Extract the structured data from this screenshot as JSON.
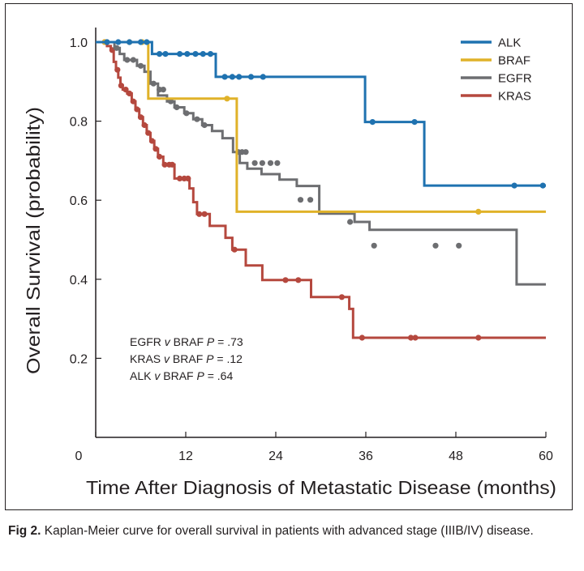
{
  "chart_data": {
    "type": "line",
    "subtype": "kaplan-meier",
    "xlabel": "Time After Diagnosis of Metastatic Disease (months)",
    "ylabel": "Overall Survival (probability)",
    "xlim": [
      0,
      60
    ],
    "ylim": [
      0,
      1.05
    ],
    "x_ticks": [
      0,
      12,
      24,
      36,
      48,
      60
    ],
    "y_ticks": [
      0.2,
      0.4,
      0.6,
      0.8,
      1.0
    ],
    "x_tick_labels": [
      "0",
      "12",
      "24",
      "36",
      "48",
      "60"
    ],
    "y_tick_labels": [
      "0.2",
      "0.4",
      "0.6",
      "0.8",
      "1.0"
    ],
    "grid": false,
    "legend_position": "top-right",
    "series": [
      {
        "name": "ALK",
        "color": "#1f72b0",
        "steps": [
          [
            0,
            1.0
          ],
          [
            7.5,
            0.97
          ],
          [
            16,
            0.912
          ],
          [
            35.9,
            0.798
          ],
          [
            43.8,
            0.637
          ],
          [
            60,
            0.637
          ]
        ],
        "censored": [
          [
            1.5,
            1.0
          ],
          [
            3,
            1.0
          ],
          [
            4.5,
            1.0
          ],
          [
            6,
            1.0
          ],
          [
            6.8,
            1.0
          ],
          [
            8.5,
            0.97
          ],
          [
            9.3,
            0.97
          ],
          [
            11.2,
            0.97
          ],
          [
            12.2,
            0.97
          ],
          [
            13.3,
            0.97
          ],
          [
            14.3,
            0.97
          ],
          [
            15.3,
            0.97
          ],
          [
            17.2,
            0.912
          ],
          [
            18.2,
            0.912
          ],
          [
            19.1,
            0.912
          ],
          [
            20.7,
            0.912
          ],
          [
            22.3,
            0.912
          ],
          [
            36.9,
            0.798
          ],
          [
            42.5,
            0.798
          ],
          [
            55.8,
            0.637
          ],
          [
            59.6,
            0.637
          ]
        ]
      },
      {
        "name": "BRAF",
        "color": "#e0b229",
        "steps": [
          [
            0,
            1.0
          ],
          [
            7,
            0.857
          ],
          [
            18.8,
            0.571
          ],
          [
            60,
            0.571
          ]
        ],
        "censored": [
          [
            1.2,
            1.0
          ],
          [
            4.5,
            1.0
          ],
          [
            6.2,
            1.0
          ],
          [
            17.5,
            0.857
          ],
          [
            51,
            0.571
          ]
        ]
      },
      {
        "name": "EGFR",
        "color": "#6d6e71",
        "steps": [
          [
            0,
            1.0
          ],
          [
            2.5,
            0.985
          ],
          [
            3.2,
            0.97
          ],
          [
            3.8,
            0.955
          ],
          [
            5.5,
            0.94
          ],
          [
            6.5,
            0.925
          ],
          [
            7.3,
            0.895
          ],
          [
            8.3,
            0.865
          ],
          [
            9.5,
            0.85
          ],
          [
            10.5,
            0.835
          ],
          [
            11.8,
            0.82
          ],
          [
            13.0,
            0.805
          ],
          [
            14.2,
            0.79
          ],
          [
            15.5,
            0.775
          ],
          [
            16.9,
            0.757
          ],
          [
            18.3,
            0.722
          ],
          [
            19.2,
            0.694
          ],
          [
            20.2,
            0.68
          ],
          [
            22.1,
            0.666
          ],
          [
            24.5,
            0.652
          ],
          [
            26.8,
            0.636
          ],
          [
            29.8,
            0.566
          ],
          [
            34.5,
            0.545
          ],
          [
            36.5,
            0.525
          ],
          [
            56.1,
            0.387
          ],
          [
            60,
            0.387
          ]
        ],
        "censored": [
          [
            1.5,
            1.0
          ],
          [
            2.8,
            0.985
          ],
          [
            4.2,
            0.955
          ],
          [
            5.0,
            0.955
          ],
          [
            6.0,
            0.94
          ],
          [
            7.7,
            0.895
          ],
          [
            8.5,
            0.88
          ],
          [
            9.0,
            0.88
          ],
          [
            10.0,
            0.85
          ],
          [
            10.8,
            0.835
          ],
          [
            12.1,
            0.82
          ],
          [
            13.5,
            0.805
          ],
          [
            14.5,
            0.79
          ],
          [
            19.0,
            0.722
          ],
          [
            19.5,
            0.722
          ],
          [
            20.0,
            0.722
          ],
          [
            21.2,
            0.694
          ],
          [
            22.2,
            0.694
          ],
          [
            23.3,
            0.694
          ],
          [
            24.2,
            0.694
          ],
          [
            27.3,
            0.601
          ],
          [
            28.6,
            0.601
          ],
          [
            33.9,
            0.545
          ],
          [
            37.1,
            0.485
          ],
          [
            45.3,
            0.485
          ],
          [
            48.4,
            0.485
          ]
        ]
      },
      {
        "name": "KRAS",
        "color": "#b5483e",
        "steps": [
          [
            0,
            1.0
          ],
          [
            1.5,
            0.99
          ],
          [
            2.0,
            0.98
          ],
          [
            2.4,
            0.95
          ],
          [
            2.7,
            0.93
          ],
          [
            3.0,
            0.91
          ],
          [
            3.3,
            0.89
          ],
          [
            3.6,
            0.88
          ],
          [
            4.2,
            0.87
          ],
          [
            4.8,
            0.85
          ],
          [
            5.3,
            0.83
          ],
          [
            5.8,
            0.81
          ],
          [
            6.3,
            0.79
          ],
          [
            6.8,
            0.77
          ],
          [
            7.3,
            0.75
          ],
          [
            7.8,
            0.73
          ],
          [
            8.3,
            0.71
          ],
          [
            9.0,
            0.69
          ],
          [
            10.5,
            0.655
          ],
          [
            12.5,
            0.63
          ],
          [
            13.0,
            0.595
          ],
          [
            13.5,
            0.565
          ],
          [
            15.2,
            0.535
          ],
          [
            17.3,
            0.505
          ],
          [
            18.2,
            0.475
          ],
          [
            20.0,
            0.435
          ],
          [
            22.2,
            0.398
          ],
          [
            28.7,
            0.355
          ],
          [
            33.8,
            0.325
          ],
          [
            34.3,
            0.252
          ],
          [
            60,
            0.252
          ]
        ],
        "censored": [
          [
            1.2,
            1.0
          ],
          [
            2.2,
            0.98
          ],
          [
            2.9,
            0.93
          ],
          [
            3.4,
            0.89
          ],
          [
            4.0,
            0.88
          ],
          [
            4.5,
            0.87
          ],
          [
            5.0,
            0.85
          ],
          [
            5.5,
            0.83
          ],
          [
            6.0,
            0.81
          ],
          [
            6.5,
            0.79
          ],
          [
            7.0,
            0.77
          ],
          [
            7.5,
            0.75
          ],
          [
            8.0,
            0.73
          ],
          [
            8.5,
            0.71
          ],
          [
            9.2,
            0.69
          ],
          [
            9.8,
            0.69
          ],
          [
            10.2,
            0.69
          ],
          [
            11.2,
            0.655
          ],
          [
            11.8,
            0.655
          ],
          [
            12.3,
            0.655
          ],
          [
            13.8,
            0.565
          ],
          [
            14.5,
            0.565
          ],
          [
            18.5,
            0.475
          ],
          [
            25.3,
            0.398
          ],
          [
            27.0,
            0.398
          ],
          [
            32.8,
            0.355
          ],
          [
            35.5,
            0.252
          ],
          [
            42.0,
            0.252
          ],
          [
            42.6,
            0.252
          ],
          [
            51.0,
            0.252
          ]
        ]
      }
    ],
    "annotations": [
      {
        "pre": "EGFR ",
        "italic": "v",
        "mid": " BRAF ",
        "italicP": "P",
        "post": " = .73"
      },
      {
        "pre": "KRAS ",
        "italic": "v",
        "mid": " BRAF ",
        "italicP": "P",
        "post": " = .12"
      },
      {
        "pre": "ALK ",
        "italic": "v",
        "mid": " BRAF ",
        "italicP": "P",
        "post": " = .64"
      }
    ]
  },
  "caption": {
    "label": "Fig 2.",
    "text": " Kaplan-Meier curve for overall survival in patients with advanced stage (IIIB/IV) disease."
  }
}
